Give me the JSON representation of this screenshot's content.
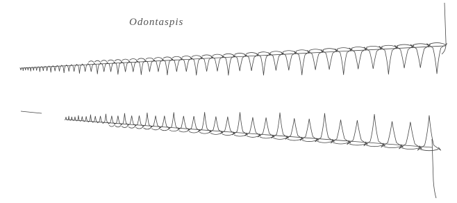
{
  "caption": "Odontaspis"
}
